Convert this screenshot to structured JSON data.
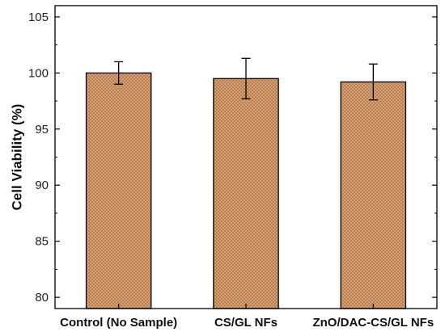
{
  "chart_data": {
    "type": "bar",
    "title": "",
    "xlabel": "",
    "ylabel": "Cell Viability (%)",
    "categories": [
      "Control (No Sample)",
      "CS/GL NFs",
      "ZnO/DAC-CS/GL NFs"
    ],
    "values": [
      100.0,
      99.5,
      99.2
    ],
    "errors": [
      1.0,
      1.8,
      1.6
    ],
    "ylim": [
      79,
      106
    ],
    "yticks": [
      80,
      85,
      90,
      95,
      100,
      105
    ],
    "grid": false,
    "legend": "none",
    "bar_fill_color": "#d9a87c",
    "bar_hatch_color": "#b47a4c",
    "bar_edge_color": "#000000"
  }
}
